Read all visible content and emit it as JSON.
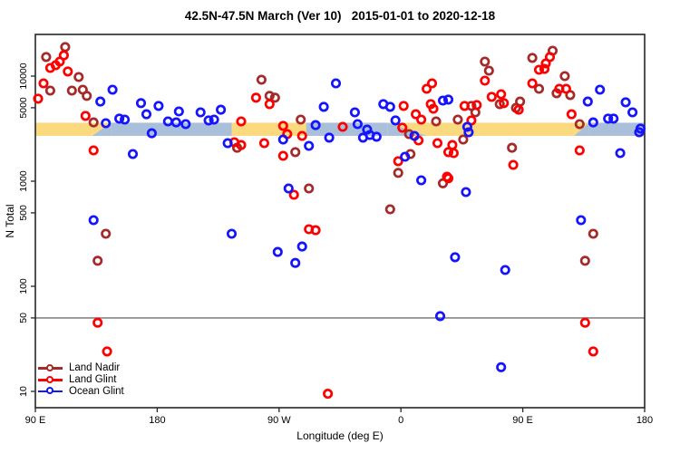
{
  "title": "42.5N-47.5N March (Ver 10)   2015-01-01 to 2020-12-18",
  "chart_data": {
    "type": "scatter",
    "title": "42.5N-47.5N March (Ver 10)   2015-01-01 to 2020-12-18",
    "xlabel": "Longitude (deg E)",
    "ylabel": "N Total",
    "x_axis": {
      "note": "longitude axis spans 450 deg east starting at 90E and wrapping 90E-180-90W-0-90E-180; x values stored as extended deg east 90..540",
      "domain": [
        90,
        540
      ],
      "ticks": [
        {
          "value": 90,
          "label": "90 E"
        },
        {
          "value": 180,
          "label": "180"
        },
        {
          "value": 270,
          "label": "90 W"
        },
        {
          "value": 360,
          "label": "0"
        },
        {
          "value": 450,
          "label": "90 E"
        },
        {
          "value": 540,
          "label": "180"
        }
      ]
    },
    "y_axis": {
      "scale": "log10",
      "range": [
        7,
        25000
      ],
      "ticks": [
        {
          "value": 10000,
          "label": "10000"
        },
        {
          "value": 5000,
          "label": "5000"
        },
        {
          "value": 1000,
          "label": "1000"
        },
        {
          "value": 500,
          "label": "500"
        },
        {
          "value": 100,
          "label": "100"
        },
        {
          "value": 50,
          "label": "50"
        },
        {
          "value": 10,
          "label": "10"
        }
      ]
    },
    "reference_line_y": 50,
    "land_ocean_band": {
      "n_total_range": [
        2700,
        3600
      ],
      "land_color": "#FBD97F",
      "ocean_color": "#A9BFDA",
      "segments": [
        {
          "start": 90,
          "end": 132,
          "type": "land"
        },
        {
          "start": 132,
          "end": 146,
          "type": "mix-land-ocean"
        },
        {
          "start": 146,
          "end": 235,
          "type": "ocean"
        },
        {
          "start": 235,
          "end": 290,
          "type": "land"
        },
        {
          "start": 290,
          "end": 350,
          "type": "ocean"
        },
        {
          "start": 350,
          "end": 379,
          "type": "mix-ocean-land"
        },
        {
          "start": 379,
          "end": 488,
          "type": "land"
        },
        {
          "start": 488,
          "end": 499,
          "type": "mix-land-ocean"
        },
        {
          "start": 499,
          "end": 540,
          "type": "ocean"
        }
      ]
    },
    "legend": {
      "position": "bottom-left"
    },
    "series": [
      {
        "name": "Land Nadir",
        "color": "#A52A2A",
        "points": [
          [
            98,
            15200
          ],
          [
            112,
            18900
          ],
          [
            122,
            9800
          ],
          [
            101,
            7280
          ],
          [
            117,
            7280
          ],
          [
            125,
            7430
          ],
          [
            128,
            6490
          ],
          [
            133,
            3630
          ],
          [
            239,
            2080
          ],
          [
            142,
            316
          ],
          [
            136,
            175
          ],
          [
            257,
            9230
          ],
          [
            263,
            6490
          ],
          [
            267,
            6230
          ],
          [
            286,
            3860
          ],
          [
            282,
            1890
          ],
          [
            292,
            853
          ],
          [
            352,
            540
          ],
          [
            358,
            1200
          ],
          [
            366,
            2810
          ],
          [
            367,
            1815
          ],
          [
            391,
            955
          ],
          [
            386,
            3710
          ],
          [
            402,
            3860
          ],
          [
            412,
            5200
          ],
          [
            415,
            4520
          ],
          [
            406,
            2490
          ],
          [
            442,
            2080
          ],
          [
            422,
            13750
          ],
          [
            425,
            11270
          ],
          [
            433,
            5420
          ],
          [
            502,
            316
          ],
          [
            496,
            175
          ],
          [
            472,
            17450
          ],
          [
            457,
            14900
          ],
          [
            481,
            10000
          ],
          [
            462,
            7570
          ],
          [
            475,
            6870
          ],
          [
            485,
            6600
          ],
          [
            448,
            5730
          ],
          [
            445,
            4980
          ],
          [
            492,
            3490
          ]
        ]
      },
      {
        "name": "Land Glint",
        "color": "#FF0000",
        "points": [
          [
            111,
            15750
          ],
          [
            108,
            13750
          ],
          [
            105,
            12700
          ],
          [
            101,
            11950
          ],
          [
            114,
            11070
          ],
          [
            96,
            8540
          ],
          [
            92,
            6100
          ],
          [
            127,
            4180
          ],
          [
            133,
            1965
          ],
          [
            136,
            45
          ],
          [
            143,
            24
          ],
          [
            237,
            2350
          ],
          [
            253,
            6230
          ],
          [
            263,
            5420
          ],
          [
            242,
            3710
          ],
          [
            273,
            3360
          ],
          [
            317,
            3290
          ],
          [
            242,
            2210
          ],
          [
            259,
            2300
          ],
          [
            276,
            2810
          ],
          [
            287,
            2700
          ],
          [
            273,
            1745
          ],
          [
            281,
            742
          ],
          [
            292,
            349
          ],
          [
            297,
            342
          ],
          [
            306,
            9.5
          ],
          [
            373,
            2445
          ],
          [
            387,
            2300
          ],
          [
            358,
            1550
          ],
          [
            395,
            1890
          ],
          [
            394,
            1105
          ],
          [
            383,
            8540
          ],
          [
            379,
            7570
          ],
          [
            422,
            9050
          ],
          [
            427,
            6350
          ],
          [
            434,
            6720
          ],
          [
            436,
            5530
          ],
          [
            362,
            5200
          ],
          [
            382,
            5420
          ],
          [
            384,
            4890
          ],
          [
            371,
            4340
          ],
          [
            375,
            3860
          ],
          [
            407,
            5200
          ],
          [
            416,
            5310
          ],
          [
            412,
            3790
          ],
          [
            447,
            4790
          ],
          [
            361,
            3230
          ],
          [
            398,
            2210
          ],
          [
            399,
            1850
          ],
          [
            395,
            1065
          ],
          [
            443,
            1430
          ],
          [
            492,
            1965
          ],
          [
            496,
            45
          ],
          [
            502,
            24
          ],
          [
            470,
            15200
          ],
          [
            467,
            13200
          ],
          [
            462,
            11500
          ],
          [
            466,
            11700
          ],
          [
            457,
            8540
          ],
          [
            477,
            7570
          ],
          [
            482,
            7570
          ],
          [
            486,
            4340
          ]
        ]
      },
      {
        "name": "Ocean Glint",
        "color": "#1414FF",
        "points": [
          [
            138,
            5730
          ],
          [
            147,
            7430
          ],
          [
            142,
            3560
          ],
          [
            152,
            3940
          ],
          [
            156,
            3860
          ],
          [
            168,
            5530
          ],
          [
            172,
            4340
          ],
          [
            181,
            5200
          ],
          [
            188,
            3710
          ],
          [
            194,
            3630
          ],
          [
            196,
            4610
          ],
          [
            201,
            3490
          ],
          [
            212,
            4520
          ],
          [
            218,
            3790
          ],
          [
            222,
            3860
          ],
          [
            227,
            4790
          ],
          [
            232,
            2300
          ],
          [
            176,
            2860
          ],
          [
            162,
            1815
          ],
          [
            133,
            426
          ],
          [
            235,
            316
          ],
          [
            297,
            3420
          ],
          [
            303,
            5100
          ],
          [
            312,
            8540
          ],
          [
            326,
            4520
          ],
          [
            328,
            3490
          ],
          [
            273,
            2490
          ],
          [
            292,
            2170
          ],
          [
            307,
            2600
          ],
          [
            332,
            2600
          ],
          [
            337,
            2750
          ],
          [
            342,
            2650
          ],
          [
            363,
            1710
          ],
          [
            370,
            2700
          ],
          [
            375,
            1020
          ],
          [
            277,
            853
          ],
          [
            287,
            239
          ],
          [
            269,
            212
          ],
          [
            282,
            167
          ],
          [
            347,
            5420
          ],
          [
            352,
            5100
          ],
          [
            391,
            5850
          ],
          [
            395,
            5980
          ],
          [
            356,
            3790
          ],
          [
            409,
            3290
          ],
          [
            335,
            3100
          ],
          [
            410,
            2920
          ],
          [
            408,
            788
          ],
          [
            522,
            1850
          ],
          [
            536,
            2920
          ],
          [
            493,
            426
          ],
          [
            400,
            189
          ],
          [
            437,
            143
          ],
          [
            507,
            7430
          ],
          [
            498,
            5730
          ],
          [
            526,
            5630
          ],
          [
            531,
            4520
          ],
          [
            513,
            3940
          ],
          [
            517,
            3940
          ],
          [
            502,
            3630
          ],
          [
            537,
            3170
          ],
          [
            389,
            52
          ],
          [
            434,
            17
          ]
        ]
      }
    ]
  }
}
